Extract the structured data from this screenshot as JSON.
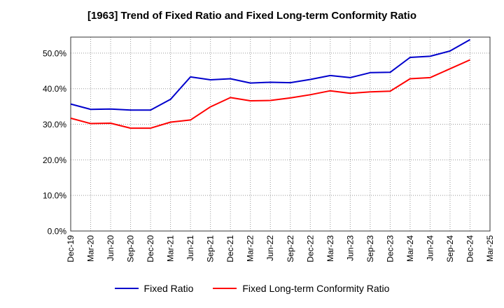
{
  "chart_data": {
    "type": "line",
    "title": "[1963]  Trend of Fixed Ratio and Fixed Long-term Conformity Ratio",
    "xlabel": "",
    "ylabel": "",
    "categories": [
      "Dec-19",
      "Mar-20",
      "Jun-20",
      "Sep-20",
      "Dec-20",
      "Mar-21",
      "Jun-21",
      "Sep-21",
      "Dec-21",
      "Mar-22",
      "Jun-22",
      "Sep-22",
      "Dec-22",
      "Mar-23",
      "Jun-23",
      "Sep-23",
      "Dec-23",
      "Mar-24",
      "Jun-24",
      "Sep-24",
      "Dec-24",
      "Mar-25"
    ],
    "y_ticks": [
      "0.0%",
      "10.0%",
      "20.0%",
      "30.0%",
      "40.0%",
      "50.0%"
    ],
    "ylim": [
      0,
      54.5
    ],
    "grid": true,
    "legend_position": "bottom",
    "series": [
      {
        "name": "Fixed Ratio",
        "color": "#0000cc",
        "values": [
          35.7,
          34.2,
          34.3,
          34.0,
          34.0,
          37.0,
          43.3,
          42.5,
          42.8,
          41.6,
          41.8,
          41.7,
          42.6,
          43.7,
          43.1,
          44.5,
          44.6,
          48.8,
          49.1,
          50.6,
          53.8,
          null
        ]
      },
      {
        "name": "Fixed Long-term Conformity Ratio",
        "color": "#ff0000",
        "values": [
          31.7,
          30.2,
          30.3,
          28.9,
          28.9,
          30.6,
          31.2,
          34.9,
          37.5,
          36.6,
          36.7,
          37.4,
          38.3,
          39.4,
          38.7,
          39.1,
          39.3,
          42.8,
          43.1,
          45.6,
          48.1,
          null
        ]
      }
    ]
  }
}
